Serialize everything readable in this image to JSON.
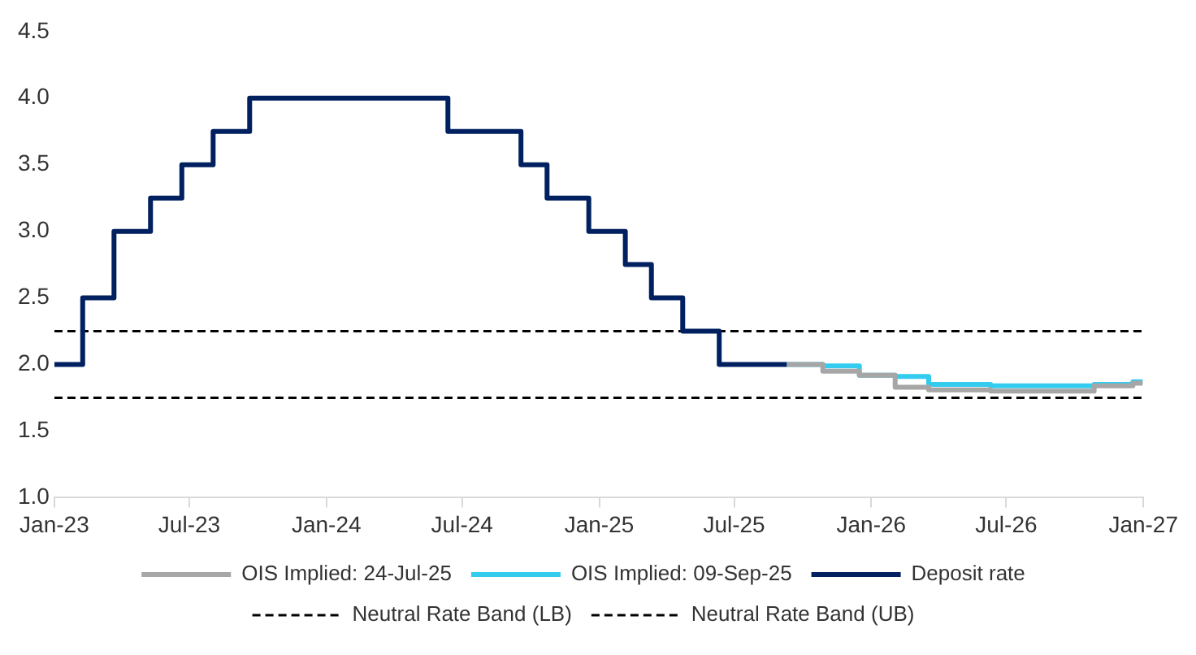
{
  "chart_data": {
    "type": "step",
    "xlim": [
      "2023-01",
      "2027-01"
    ],
    "xticks": [
      {
        "value": "2023-01",
        "label": "Jan-23"
      },
      {
        "value": "2023-07",
        "label": "Jul-23"
      },
      {
        "value": "2024-01",
        "label": "Jan-24"
      },
      {
        "value": "2024-07",
        "label": "Jul-24"
      },
      {
        "value": "2025-01",
        "label": "Jan-25"
      },
      {
        "value": "2025-07",
        "label": "Jul-25"
      },
      {
        "value": "2026-01",
        "label": "Jan-26"
      },
      {
        "value": "2026-07",
        "label": "Jul-26"
      },
      {
        "value": "2027-01",
        "label": "Jan-27"
      }
    ],
    "ylim": [
      1.0,
      4.5
    ],
    "yticks": [
      {
        "value": 1.0,
        "label": "1.0"
      },
      {
        "value": 1.5,
        "label": "1.5"
      },
      {
        "value": 2.0,
        "label": "2.0"
      },
      {
        "value": 2.5,
        "label": "2.5"
      },
      {
        "value": 3.0,
        "label": "3.0"
      },
      {
        "value": 3.5,
        "label": "3.5"
      },
      {
        "value": 4.0,
        "label": "4.0"
      },
      {
        "value": 4.5,
        "label": "4.5"
      }
    ],
    "grid": false,
    "legend": "bottom",
    "marker": "none",
    "series": [
      {
        "name": "OIS Implied: 24-Jul-25",
        "color": "#a6a6a6",
        "x": [
          "2025-09-10",
          "2025-10-28",
          "2025-12-16",
          "2026-02-02",
          "2026-03-19",
          "2026-06-10",
          "2026-10-27",
          "2026-12-18",
          "2026-12-31"
        ],
        "values": [
          2.0,
          1.95,
          1.92,
          1.83,
          1.81,
          1.8,
          1.84,
          1.86,
          1.86
        ]
      },
      {
        "name": "OIS Implied: 09-Sep-25",
        "color": "#33ccee",
        "x": [
          "2025-09-10",
          "2025-10-28",
          "2025-12-16",
          "2026-02-02",
          "2026-03-19",
          "2026-06-10",
          "2026-10-27",
          "2026-12-18",
          "2026-12-31"
        ],
        "values": [
          2.0,
          1.99,
          1.92,
          1.91,
          1.85,
          1.84,
          1.85,
          1.87,
          1.87
        ]
      },
      {
        "name": "Deposit rate",
        "color": "#002060",
        "x": [
          "2023-01-01",
          "2023-02-08",
          "2023-03-22",
          "2023-05-10",
          "2023-06-21",
          "2023-08-02",
          "2023-09-20",
          "2024-06-12",
          "2024-09-18",
          "2024-10-23",
          "2024-12-18",
          "2025-02-05",
          "2025-03-12",
          "2025-04-23",
          "2025-06-11",
          "2025-09-10"
        ],
        "values": [
          2.0,
          2.5,
          3.0,
          3.25,
          3.5,
          3.75,
          4.0,
          3.75,
          3.5,
          3.25,
          3.0,
          2.75,
          2.5,
          2.25,
          2.0,
          2.0
        ]
      },
      {
        "name": "Neutral Rate Band (LB)",
        "color": "#000000",
        "type": "line",
        "line_style": "dashed",
        "x": [
          "2023-01",
          "2027-01"
        ],
        "values": [
          1.75,
          1.75
        ]
      },
      {
        "name": "Neutral Rate Band (UB)",
        "color": "#000000",
        "type": "line",
        "line_style": "dashed",
        "x": [
          "2023-01",
          "2027-01"
        ],
        "values": [
          2.25,
          2.25
        ]
      }
    ]
  }
}
